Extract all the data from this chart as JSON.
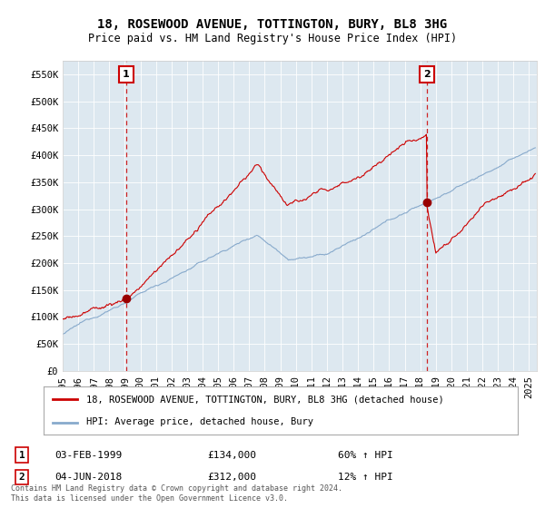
{
  "title": "18, ROSEWOOD AVENUE, TOTTINGTON, BURY, BL8 3HG",
  "subtitle": "Price paid vs. HM Land Registry's House Price Index (HPI)",
  "ylabel_ticks": [
    "£0",
    "£50K",
    "£100K",
    "£150K",
    "£200K",
    "£250K",
    "£300K",
    "£350K",
    "£400K",
    "£450K",
    "£500K",
    "£550K"
  ],
  "ytick_values": [
    0,
    50000,
    100000,
    150000,
    200000,
    250000,
    300000,
    350000,
    400000,
    450000,
    500000,
    550000
  ],
  "ylim": [
    0,
    575000
  ],
  "xlim_start": 1995.0,
  "xlim_end": 2025.5,
  "xtick_years": [
    1995,
    1996,
    1997,
    1998,
    1999,
    2000,
    2001,
    2002,
    2003,
    2004,
    2005,
    2006,
    2007,
    2008,
    2009,
    2010,
    2011,
    2012,
    2013,
    2014,
    2015,
    2016,
    2017,
    2018,
    2019,
    2020,
    2021,
    2022,
    2023,
    2024,
    2025
  ],
  "sale1_x": 1999.09,
  "sale1_y": 134000,
  "sale1_label": "1",
  "sale1_date": "03-FEB-1999",
  "sale1_price": "£134,000",
  "sale1_hpi": "60% ↑ HPI",
  "sale2_x": 2018.42,
  "sale2_y": 312000,
  "sale2_label": "2",
  "sale2_date": "04-JUN-2018",
  "sale2_price": "£312,000",
  "sale2_hpi": "12% ↑ HPI",
  "line1_color": "#cc0000",
  "line2_color": "#88aacc",
  "sale_marker_color": "#990000",
  "vline_color": "#cc0000",
  "grid_color": "#cccccc",
  "plot_bg_color": "#dde8f0",
  "background_color": "#ffffff",
  "legend1_label": "18, ROSEWOOD AVENUE, TOTTINGTON, BURY, BL8 3HG (detached house)",
  "legend2_label": "HPI: Average price, detached house, Bury",
  "footnote": "Contains HM Land Registry data © Crown copyright and database right 2024.\nThis data is licensed under the Open Government Licence v3.0.",
  "title_fontsize": 10,
  "subtitle_fontsize": 8.5,
  "tick_fontsize": 7.5,
  "legend_fontsize": 7.5,
  "annotation_fontsize": 8
}
